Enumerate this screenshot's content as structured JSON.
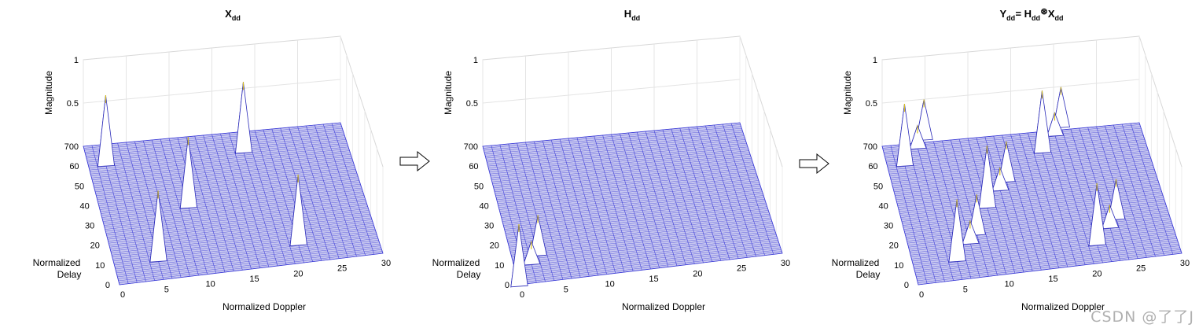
{
  "chart_data": [
    {
      "type": "surface3d",
      "title_main": "X",
      "title_sub": "dd",
      "title_rest": "",
      "xlabel": "Normalized Doppler",
      "ylabel": [
        "Normalized",
        "Delay"
      ],
      "zlabel": "Magnitude",
      "xlim": [
        0,
        30
      ],
      "ylim": [
        0,
        70
      ],
      "zlim": [
        0,
        1
      ],
      "xticks": [
        "0",
        "5",
        "10",
        "15",
        "20",
        "25",
        "30"
      ],
      "yticks": [
        "0",
        "10",
        "20",
        "30",
        "40",
        "50",
        "60",
        "70"
      ],
      "zticks": [
        "0",
        "0.5",
        "1"
      ],
      "grid": true,
      "peaks": [
        {
          "doppler": 2,
          "delay": 60,
          "mag": 0.8
        },
        {
          "doppler": 18,
          "delay": 60,
          "mag": 0.8
        },
        {
          "doppler": 10,
          "delay": 35,
          "mag": 0.8
        },
        {
          "doppler": 5,
          "delay": 10,
          "mag": 0.8
        },
        {
          "doppler": 21,
          "delay": 10,
          "mag": 0.8
        }
      ]
    },
    {
      "type": "surface3d",
      "title_main": "H",
      "title_sub": "dd",
      "title_rest": "",
      "xlabel": "Normalized Doppler",
      "ylabel": [
        "Normalized",
        "Delay"
      ],
      "zlabel": "Magnitude",
      "xlim": [
        0,
        30
      ],
      "ylim": [
        0,
        70
      ],
      "zlim": [
        0,
        1
      ],
      "xticks": [
        "0",
        "5",
        "10",
        "15",
        "20",
        "25",
        "30"
      ],
      "yticks": [
        "0",
        "10",
        "20",
        "30",
        "40",
        "50",
        "60",
        "70"
      ],
      "zticks": [
        "0",
        "0.5",
        "1"
      ],
      "grid": true,
      "peaks": [
        {
          "doppler": 0,
          "delay": 0,
          "mag": 0.7
        },
        {
          "doppler": 2,
          "delay": 10,
          "mag": 0.25
        },
        {
          "doppler": 3,
          "delay": 14,
          "mag": 0.45
        }
      ]
    },
    {
      "type": "surface3d",
      "title_main": "Y",
      "title_sub": "dd",
      "title_rest": " = H",
      "title_sub2": "dd",
      "title_op": "⊛",
      "title_main3": "X",
      "title_sub3": "dd",
      "xlabel": "Normalized Doppler",
      "ylabel": [
        "Normalized",
        "Delay"
      ],
      "zlabel": "Magnitude",
      "xlim": [
        0,
        30
      ],
      "ylim": [
        0,
        70
      ],
      "zlim": [
        0,
        1
      ],
      "xticks": [
        "0",
        "5",
        "10",
        "15",
        "20",
        "25",
        "30"
      ],
      "yticks": [
        "0",
        "10",
        "20",
        "30",
        "40",
        "50",
        "60",
        "70"
      ],
      "zticks": [
        "0",
        "0.5",
        "1"
      ],
      "grid": true,
      "peaks": [
        {
          "doppler": 2,
          "delay": 60,
          "mag": 0.7
        },
        {
          "doppler": 4,
          "delay": 68,
          "mag": 0.25
        },
        {
          "doppler": 5,
          "delay": 72,
          "mag": 0.45
        },
        {
          "doppler": 18,
          "delay": 60,
          "mag": 0.7
        },
        {
          "doppler": 20,
          "delay": 68,
          "mag": 0.25
        },
        {
          "doppler": 21,
          "delay": 72,
          "mag": 0.45
        },
        {
          "doppler": 10,
          "delay": 35,
          "mag": 0.7
        },
        {
          "doppler": 12,
          "delay": 43,
          "mag": 0.25
        },
        {
          "doppler": 13,
          "delay": 47,
          "mag": 0.45
        },
        {
          "doppler": 5,
          "delay": 10,
          "mag": 0.7
        },
        {
          "doppler": 7,
          "delay": 18,
          "mag": 0.25
        },
        {
          "doppler": 8,
          "delay": 22,
          "mag": 0.45
        },
        {
          "doppler": 21,
          "delay": 10,
          "mag": 0.7
        },
        {
          "doppler": 23,
          "delay": 18,
          "mag": 0.25
        },
        {
          "doppler": 24,
          "delay": 22,
          "mag": 0.45
        }
      ]
    }
  ],
  "colors": {
    "mesh": "#3b3bd6",
    "mesh_fill": "#c8c8f0",
    "peak_fill": "#ffffff",
    "peak_edge": "#2a2ab8",
    "peak_tip": "#d8c020",
    "box": "#d8d8d8",
    "text": "#000000"
  },
  "arrows": [
    "arrow-right-icon",
    "arrow-right-icon"
  ],
  "watermark": "CSDN @了了J"
}
